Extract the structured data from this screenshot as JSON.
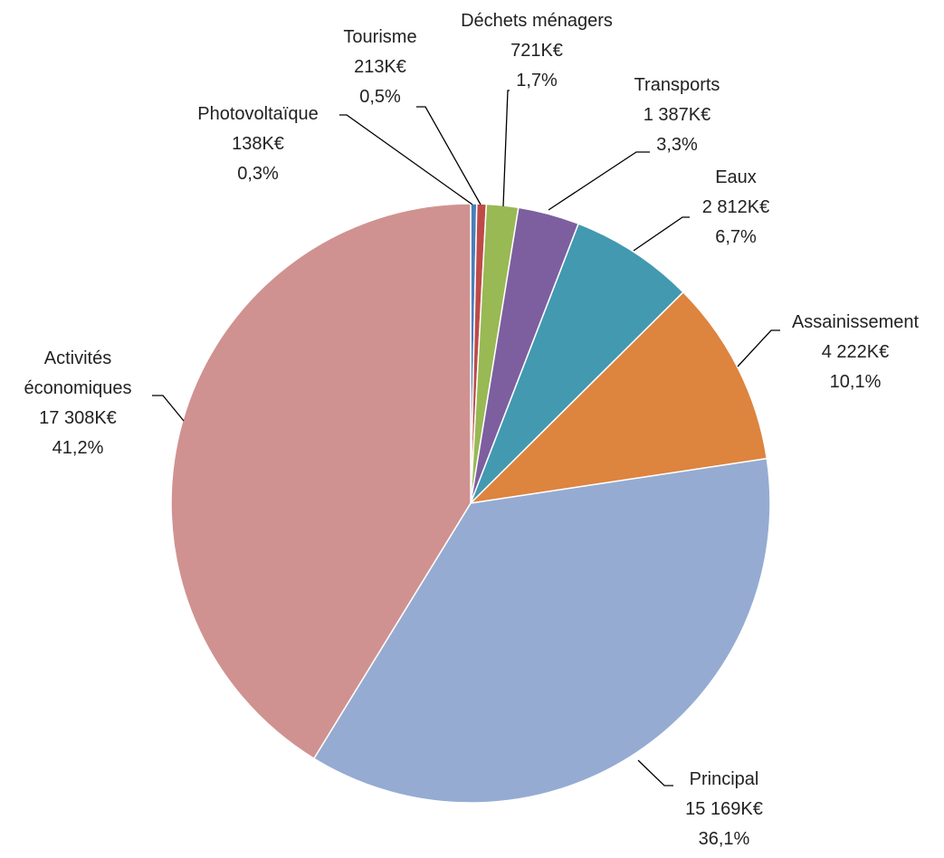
{
  "chart_data": {
    "type": "pie",
    "categories": [
      "Photovoltaïque",
      "Tourisme",
      "Déchets ménagers",
      "Transports",
      "Eaux",
      "Assainissement",
      "Principal",
      "Activités économiques"
    ],
    "values": [
      138,
      213,
      721,
      1387,
      2812,
      4222,
      15169,
      17308
    ],
    "value_labels": [
      "138K€",
      "213K€",
      "721K€",
      "1 387K€",
      "2 812K€",
      "4 222K€",
      "15 169K€",
      "17 308K€"
    ],
    "percentages": [
      0.3,
      0.5,
      1.7,
      3.3,
      6.7,
      10.1,
      36.1,
      41.2
    ],
    "percentage_labels": [
      "0,3%",
      "0,5%",
      "1,7%",
      "3,3%",
      "6,7%",
      "10,1%",
      "36,1%",
      "41,2%"
    ],
    "colors": [
      "#4a7ebb",
      "#be4b48",
      "#98b954",
      "#7d5fa0",
      "#4299b0",
      "#dd843f",
      "#95abd2",
      "#d09290"
    ]
  }
}
